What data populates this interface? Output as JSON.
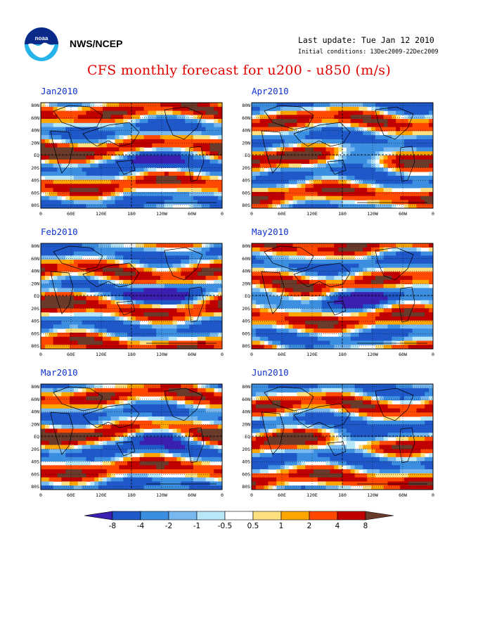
{
  "header": {
    "org": "NWS/NCEP",
    "last_update": "Last update: Tue Jan 12 2010",
    "initial_conditions": "Initial conditions: 13Dec2009-22Dec2009"
  },
  "title": "CFS monthly forecast for u200 - u850 (m/s)",
  "logo_icon": "noaa-logo-icon",
  "panels": [
    {
      "label": "Jan2010"
    },
    {
      "label": "Apr2010"
    },
    {
      "label": "Feb2010"
    },
    {
      "label": "May2010"
    },
    {
      "label": "Mar2010"
    },
    {
      "label": "Jun2010"
    }
  ],
  "lat_ticks": [
    "80N",
    "60N",
    "40N",
    "20N",
    "EQ",
    "20S",
    "40S",
    "60S",
    "80S"
  ],
  "lon_ticks": [
    "0",
    "60E",
    "120E",
    "180",
    "120W",
    "60W",
    "0"
  ],
  "colorbar": {
    "labels": [
      "-8",
      "-4",
      "-2",
      "-1",
      "-0.5",
      "0.5",
      "1",
      "2",
      "4",
      "8"
    ],
    "colors": [
      "#3a1fb0",
      "#1f58c8",
      "#3c8ee0",
      "#78b8f0",
      "#b8e8f8",
      "#ffffff",
      "#ffe080",
      "#ffa500",
      "#ff4800",
      "#c00000",
      "#6a3a2a"
    ]
  }
}
